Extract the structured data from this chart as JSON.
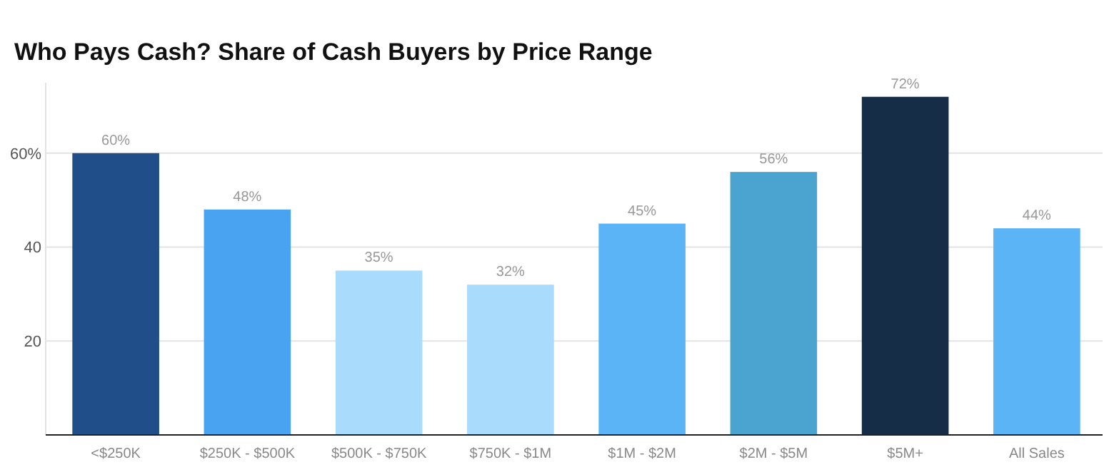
{
  "chart_data": {
    "type": "bar",
    "title": "Who Pays Cash? Share of Cash Buyers by Price Range",
    "categories": [
      "<$250K",
      "$250K - $500K",
      "$500K - $750K",
      "$750K - $1M",
      "$1M - $2M",
      "$2M - $5M",
      "$5M+",
      "All Sales"
    ],
    "values": [
      60,
      48,
      35,
      32,
      45,
      56,
      72,
      44
    ],
    "colors": [
      "#1f4e89",
      "#4aa3f0",
      "#a9dcfc",
      "#a9dcfc",
      "#5ab4f5",
      "#4ba3cf",
      "#162d47",
      "#5ab4f5"
    ],
    "value_labels": [
      "60%",
      "48%",
      "35%",
      "32%",
      "45%",
      "56%",
      "72%",
      "44%"
    ],
    "ylim": [
      0,
      75
    ],
    "yticks": [
      {
        "value": 20,
        "label": "20"
      },
      {
        "value": 40,
        "label": "40"
      },
      {
        "value": 60,
        "label": "60%"
      }
    ],
    "grid": "y"
  }
}
